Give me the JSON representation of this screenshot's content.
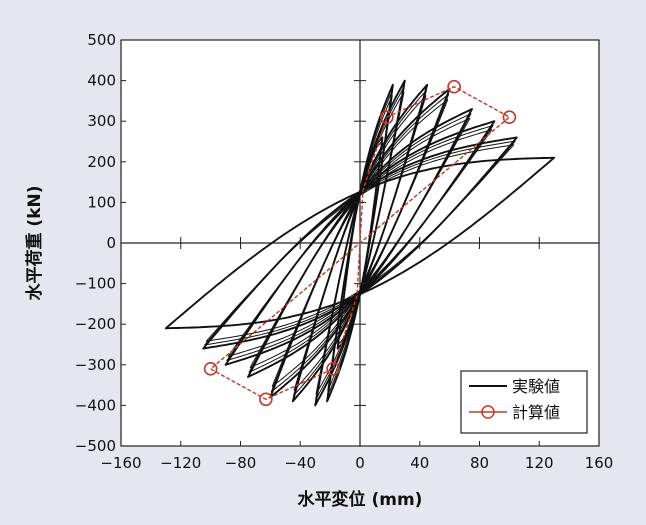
{
  "chart_data": {
    "type": "line",
    "title": "",
    "xlabel": "水平変位 (mm)",
    "ylabel": "水平荷重 (kN)",
    "xlim": [
      -160,
      160
    ],
    "ylim": [
      -500,
      500
    ],
    "x_ticks": [
      -160,
      -120,
      -80,
      -40,
      0,
      40,
      80,
      120,
      160
    ],
    "x_tick_labels": [
      "−160",
      "−120",
      "−80",
      "−40",
      "0",
      "40",
      "80",
      "120",
      "160"
    ],
    "y_ticks": [
      500,
      400,
      300,
      200,
      100,
      0,
      -100,
      -200,
      -300,
      -400,
      -500
    ],
    "y_tick_labels": [
      "500",
      "400",
      "300",
      "200",
      "100",
      "0",
      "−100",
      "−200",
      "−300",
      "−400",
      "−500"
    ],
    "grid": false,
    "legend_position": "bottom-right",
    "series": [
      {
        "name": "実験値",
        "style": "hysteresis-loops",
        "color": "#111111",
        "loops": [
          {
            "amplitude": 15,
            "peak_load": 260,
            "cycles": 2
          },
          {
            "amplitude": 22,
            "peak_load": 390,
            "cycles": 3
          },
          {
            "amplitude": 30,
            "peak_load": 400,
            "cycles": 3
          },
          {
            "amplitude": 45,
            "peak_load": 390,
            "cycles": 3
          },
          {
            "amplitude": 60,
            "peak_load": 380,
            "cycles": 3
          },
          {
            "amplitude": 75,
            "peak_load": 330,
            "cycles": 3
          },
          {
            "amplitude": 90,
            "peak_load": 300,
            "cycles": 3
          },
          {
            "amplitude": 105,
            "peak_load": 260,
            "cycles": 3
          },
          {
            "amplitude": 130,
            "peak_load": 210,
            "cycles": 1
          }
        ]
      },
      {
        "name": "計算値",
        "color": "#c0392b",
        "marker": "circle",
        "points": [
          {
            "x": -100,
            "y": -310
          },
          {
            "x": -63,
            "y": -385
          },
          {
            "x": -18,
            "y": -310
          },
          {
            "x": -2,
            "y": -130
          },
          {
            "x": 2,
            "y": 130
          },
          {
            "x": 18,
            "y": 310
          },
          {
            "x": 63,
            "y": 385
          },
          {
            "x": 100,
            "y": 310
          }
        ],
        "marker_indices": [
          0,
          1,
          2,
          5,
          6,
          7
        ]
      }
    ]
  }
}
